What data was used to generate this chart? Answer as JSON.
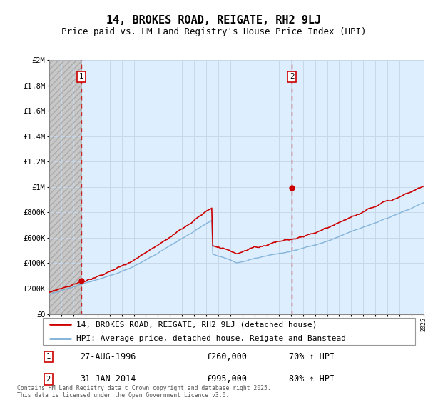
{
  "title": "14, BROKES ROAD, REIGATE, RH2 9LJ",
  "subtitle": "Price paid vs. HM Land Registry's House Price Index (HPI)",
  "ylim": [
    0,
    2000000
  ],
  "yticks": [
    0,
    200000,
    400000,
    600000,
    800000,
    1000000,
    1200000,
    1400000,
    1600000,
    1800000,
    2000000
  ],
  "ytick_labels": [
    "£0",
    "£200K",
    "£400K",
    "£600K",
    "£800K",
    "£1M",
    "£1.2M",
    "£1.4M",
    "£1.6M",
    "£1.8M",
    "£2M"
  ],
  "x_start_year": 1994,
  "x_end_year": 2025,
  "sale1_year": 1996.65,
  "sale1_price": 260000,
  "sale2_year": 2014.08,
  "sale2_price": 995000,
  "sale1_label": "1",
  "sale2_label": "2",
  "property_line_color": "#cc0000",
  "hpi_line_color": "#7aaed6",
  "background_hatched_color": "#d8d8d8",
  "background_blue_color": "#ddeeff",
  "grid_color": "#c8d8e8",
  "legend1_text": "14, BROKES ROAD, REIGATE, RH2 9LJ (detached house)",
  "legend2_text": "HPI: Average price, detached house, Reigate and Banstead",
  "footnote": "Contains HM Land Registry data © Crown copyright and database right 2025.\nThis data is licensed under the Open Government Licence v3.0.",
  "title_fontsize": 11,
  "subtitle_fontsize": 9,
  "tick_fontsize": 7.5,
  "legend_fontsize": 8,
  "annotation_fontsize": 8.5,
  "hpi_seed": 0,
  "prop_seed": 1
}
